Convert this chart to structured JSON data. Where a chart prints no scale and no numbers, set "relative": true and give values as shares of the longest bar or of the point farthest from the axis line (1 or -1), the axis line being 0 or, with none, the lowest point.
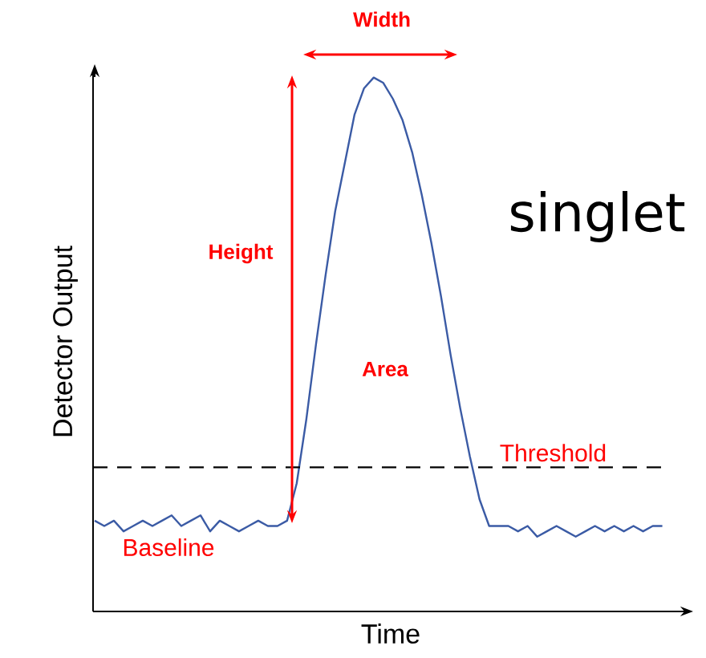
{
  "chart_data": {
    "type": "line",
    "relative": true,
    "xlabel": "Time",
    "ylabel": "Detector Output",
    "categories": [
      null,
      null,
      null,
      null,
      null,
      null,
      null,
      null,
      null,
      null,
      null,
      null,
      null,
      null,
      null,
      null,
      null,
      null,
      null,
      null,
      null,
      null,
      null,
      null,
      null,
      null,
      null,
      null,
      null,
      null,
      null,
      null,
      null,
      null,
      null,
      null,
      null,
      null,
      null,
      null,
      null,
      null,
      null,
      null,
      null,
      null,
      null,
      null,
      null,
      null,
      null,
      null,
      null,
      null,
      null,
      null,
      null,
      null,
      null,
      null,
      null
    ],
    "series": [
      {
        "color": "#3b5ba5",
        "values": [
          0.17,
          0.16,
          0.17,
          0.15,
          0.16,
          0.17,
          0.16,
          0.17,
          0.18,
          0.16,
          0.17,
          0.18,
          0.15,
          0.17,
          0.16,
          0.15,
          0.16,
          0.17,
          0.16,
          0.16,
          0.17,
          0.24,
          0.36,
          0.5,
          0.63,
          0.75,
          0.84,
          0.93,
          0.98,
          1.0,
          0.99,
          0.96,
          0.92,
          0.86,
          0.78,
          0.69,
          0.59,
          0.48,
          0.38,
          0.29,
          0.21,
          0.16,
          0.16,
          0.16,
          0.15,
          0.16,
          0.14,
          0.15,
          0.16,
          0.15,
          0.14,
          0.15,
          0.16,
          0.15,
          0.16,
          0.15,
          0.16,
          0.15,
          0.16,
          0.16,
          null
        ]
      }
    ],
    "ref_lines": [
      {
        "axis": "y",
        "value": 0.27,
        "label": "Threshold",
        "color": "#000000",
        "line_style": "dashed"
      }
    ],
    "annotations": [
      "singlet",
      "Width",
      "Height",
      "Area",
      "Baseline"
    ]
  }
}
